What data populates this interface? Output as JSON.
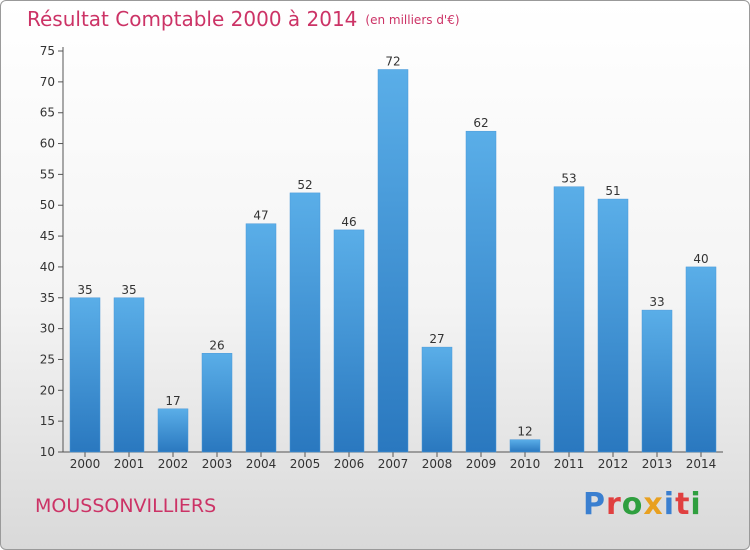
{
  "header": {
    "title": "Résultat Comptable 2000 à 2014",
    "unit": "(en milliers d'€)"
  },
  "footer": {
    "commune": "MOUSSONVILLIERS",
    "logo_text": "Proxiti",
    "logo_colors": [
      "#3a7fd0",
      "#e04040",
      "#2f9f3f",
      "#e8a020",
      "#3a7fd0",
      "#e04040",
      "#2f9f3f"
    ]
  },
  "colors": {
    "title": "#cc3366",
    "bar_top": "#5aaee8",
    "bar_bottom": "#2a78bf",
    "axis": "#555555"
  },
  "chart_data": {
    "type": "bar",
    "title": "Résultat Comptable 2000 à 2014",
    "categories": [
      "2000",
      "2001",
      "2002",
      "2003",
      "2004",
      "2005",
      "2006",
      "2007",
      "2008",
      "2009",
      "2010",
      "2011",
      "2012",
      "2013",
      "2014"
    ],
    "values": [
      35,
      35,
      17,
      26,
      47,
      52,
      46,
      72,
      27,
      62,
      12,
      53,
      51,
      33,
      40
    ],
    "ylim": [
      10,
      75
    ],
    "yticks": [
      10,
      15,
      20,
      25,
      30,
      35,
      40,
      45,
      50,
      55,
      60,
      65,
      70,
      75
    ],
    "grid": false,
    "data_labels": true,
    "legend": "none"
  }
}
